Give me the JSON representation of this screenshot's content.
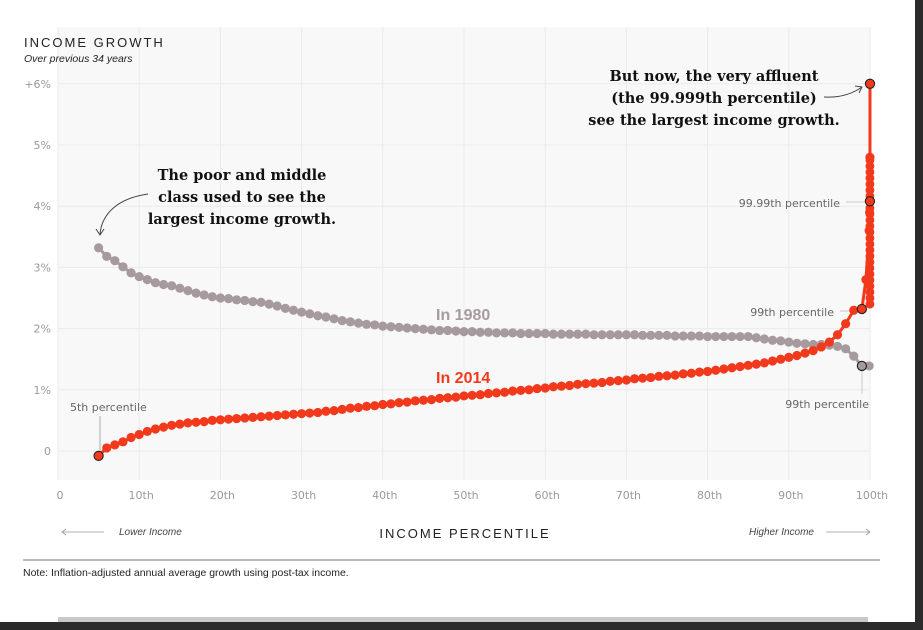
{
  "chart_data": {
    "type": "scatter",
    "title": "INCOME GROWTH",
    "subtitle": "Over previous 34 years",
    "xlabel": "INCOME PERCENTILE",
    "ylabel": "",
    "xlim": [
      0,
      100
    ],
    "ylim": [
      -0.5,
      6.5
    ],
    "grid": true,
    "y_ticks": [
      {
        "value": 6,
        "label": "+6%"
      },
      {
        "value": 5,
        "label": "5%"
      },
      {
        "value": 4,
        "label": "4%"
      },
      {
        "value": 3,
        "label": "3%"
      },
      {
        "value": 2,
        "label": "2%"
      },
      {
        "value": 1,
        "label": "1%"
      },
      {
        "value": 0,
        "label": "0"
      }
    ],
    "x_ticks": [
      {
        "value": 0,
        "label": "0"
      },
      {
        "value": 10,
        "label": "10th"
      },
      {
        "value": 20,
        "label": "20th"
      },
      {
        "value": 30,
        "label": "30th"
      },
      {
        "value": 40,
        "label": "40th"
      },
      {
        "value": 50,
        "label": "50th"
      },
      {
        "value": 60,
        "label": "60th"
      },
      {
        "value": 70,
        "label": "70th"
      },
      {
        "value": 80,
        "label": "80th"
      },
      {
        "value": 90,
        "label": "90th"
      },
      {
        "value": 100,
        "label": "100th"
      }
    ],
    "series": [
      {
        "name": "In 1980",
        "color": "#a79a9f",
        "x": [
          5,
          6,
          7,
          8,
          9,
          10,
          11,
          12,
          13,
          14,
          15,
          16,
          17,
          18,
          19,
          20,
          21,
          22,
          23,
          24,
          25,
          26,
          27,
          28,
          29,
          30,
          31,
          32,
          33,
          34,
          35,
          36,
          37,
          38,
          39,
          40,
          41,
          42,
          43,
          44,
          45,
          46,
          47,
          48,
          49,
          50,
          51,
          52,
          53,
          54,
          55,
          56,
          57,
          58,
          59,
          60,
          61,
          62,
          63,
          64,
          65,
          66,
          67,
          68,
          69,
          70,
          71,
          72,
          73,
          74,
          75,
          76,
          77,
          78,
          79,
          80,
          81,
          82,
          83,
          84,
          85,
          86,
          87,
          88,
          89,
          90,
          91,
          92,
          93,
          94,
          95,
          96,
          97,
          98,
          99,
          99.9
        ],
        "y": [
          3.32,
          3.18,
          3.11,
          3.01,
          2.91,
          2.85,
          2.8,
          2.75,
          2.72,
          2.7,
          2.66,
          2.62,
          2.58,
          2.55,
          2.52,
          2.5,
          2.49,
          2.47,
          2.46,
          2.44,
          2.43,
          2.4,
          2.37,
          2.33,
          2.3,
          2.27,
          2.24,
          2.21,
          2.19,
          2.16,
          2.13,
          2.11,
          2.09,
          2.07,
          2.06,
          2.04,
          2.03,
          2.02,
          2.01,
          2.0,
          1.99,
          1.98,
          1.97,
          1.97,
          1.96,
          1.95,
          1.95,
          1.94,
          1.94,
          1.93,
          1.93,
          1.93,
          1.92,
          1.92,
          1.92,
          1.92,
          1.91,
          1.91,
          1.91,
          1.91,
          1.91,
          1.9,
          1.9,
          1.9,
          1.9,
          1.9,
          1.9,
          1.89,
          1.89,
          1.89,
          1.89,
          1.88,
          1.88,
          1.88,
          1.88,
          1.87,
          1.87,
          1.87,
          1.87,
          1.87,
          1.87,
          1.85,
          1.83,
          1.81,
          1.8,
          1.78,
          1.76,
          1.75,
          1.74,
          1.74,
          1.73,
          1.71,
          1.67,
          1.55,
          1.39,
          1.39
        ]
      },
      {
        "name": "In 2014",
        "color": "#f2391c",
        "x": [
          5,
          6,
          7,
          8,
          9,
          10,
          11,
          12,
          13,
          14,
          15,
          16,
          17,
          18,
          19,
          20,
          21,
          22,
          23,
          24,
          25,
          26,
          27,
          28,
          29,
          30,
          31,
          32,
          33,
          34,
          35,
          36,
          37,
          38,
          39,
          40,
          41,
          42,
          43,
          44,
          45,
          46,
          47,
          48,
          49,
          50,
          51,
          52,
          53,
          54,
          55,
          56,
          57,
          58,
          59,
          60,
          61,
          62,
          63,
          64,
          65,
          66,
          67,
          68,
          69,
          70,
          71,
          72,
          73,
          74,
          75,
          76,
          77,
          78,
          79,
          80,
          81,
          82,
          83,
          84,
          85,
          86,
          87,
          88,
          89,
          90,
          91,
          92,
          93,
          94,
          95,
          96,
          97,
          98,
          99,
          99.5,
          99.9,
          99.95,
          99.99,
          99.995,
          99.999
        ],
        "y": [
          -0.08,
          0.05,
          0.1,
          0.15,
          0.22,
          0.27,
          0.32,
          0.36,
          0.39,
          0.42,
          0.44,
          0.46,
          0.47,
          0.48,
          0.5,
          0.51,
          0.52,
          0.53,
          0.54,
          0.55,
          0.56,
          0.57,
          0.58,
          0.59,
          0.6,
          0.61,
          0.62,
          0.63,
          0.65,
          0.66,
          0.68,
          0.7,
          0.71,
          0.73,
          0.74,
          0.76,
          0.77,
          0.79,
          0.8,
          0.82,
          0.83,
          0.84,
          0.86,
          0.87,
          0.88,
          0.9,
          0.91,
          0.92,
          0.94,
          0.95,
          0.96,
          0.98,
          0.99,
          1.0,
          1.02,
          1.03,
          1.05,
          1.06,
          1.07,
          1.09,
          1.1,
          1.11,
          1.12,
          1.14,
          1.15,
          1.16,
          1.18,
          1.19,
          1.2,
          1.22,
          1.23,
          1.24,
          1.26,
          1.27,
          1.29,
          1.3,
          1.32,
          1.34,
          1.36,
          1.38,
          1.4,
          1.42,
          1.44,
          1.47,
          1.5,
          1.53,
          1.56,
          1.6,
          1.64,
          1.7,
          1.78,
          1.9,
          2.08,
          2.3,
          2.32,
          2.8,
          3.6,
          3.9,
          4.08,
          4.8,
          6.0
        ]
      }
    ],
    "annotations": [
      {
        "id": "poor-middle",
        "lines": [
          "The poor and middle",
          "class used to see the",
          "largest income growth."
        ]
      },
      {
        "id": "very-affluent",
        "lines": [
          "But now, the very affluent",
          "(the 99.999th percentile)",
          "see the largest income growth."
        ]
      }
    ],
    "series_labels": [
      {
        "series": "In 1980",
        "text": "In 1980"
      },
      {
        "series": "In 2014",
        "text": "In 2014"
      }
    ],
    "callouts": [
      {
        "id": "p5-2014",
        "text": "5th percentile",
        "series": "In 2014",
        "x": 5,
        "y": -0.08
      },
      {
        "id": "p9999-2014",
        "text": "99.99th percentile",
        "series": "In 2014",
        "x": 99.99,
        "y": 4.08
      },
      {
        "id": "p99-2014",
        "text": "99th percentile",
        "series": "In 2014",
        "x": 99,
        "y": 2.32
      },
      {
        "id": "p99-1980",
        "text": "99th percentile",
        "series": "In 1980",
        "x": 99,
        "y": 1.39
      }
    ],
    "direction_labels": {
      "left": "Lower Income",
      "right": "Higher Income"
    },
    "note": "Note: Inflation-adjusted annual average growth using post-tax income."
  }
}
